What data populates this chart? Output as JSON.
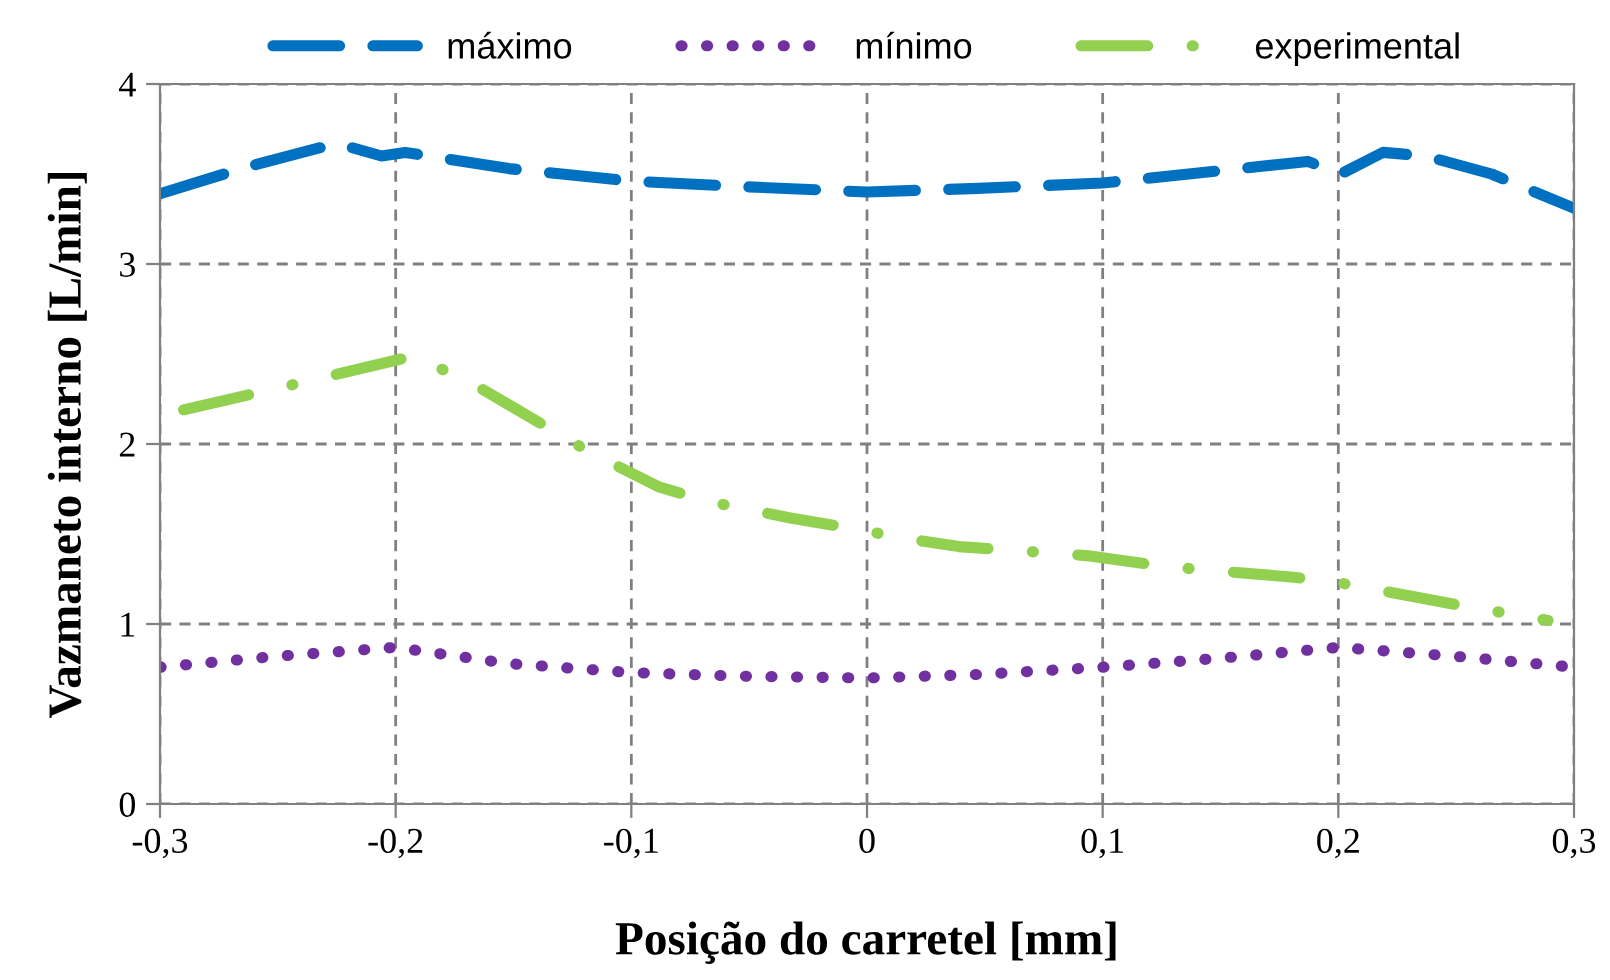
{
  "chart_data": {
    "type": "line",
    "xlabel": "Posição do carretel [mm]",
    "ylabel": "Vazmaneto interno [L/min]",
    "xlim": [
      -0.3,
      0.3
    ],
    "ylim": [
      0,
      4
    ],
    "xticks": [
      {
        "value": -0.3,
        "label": "-0,3"
      },
      {
        "value": -0.2,
        "label": "-0,2"
      },
      {
        "value": -0.1,
        "label": "-0,1"
      },
      0,
      {
        "value": 0.1,
        "label": "0,1"
      },
      {
        "value": 0.2,
        "label": "0,2"
      },
      {
        "value": 0.3,
        "label": "0,3"
      }
    ],
    "yticks": [
      0,
      1,
      2,
      3,
      4
    ],
    "grid": true,
    "legend": "top",
    "marker": "none",
    "series": [
      {
        "name": "máximo",
        "color": "#0070c0",
        "line_style": "dashed",
        "x": [
          -0.3,
          -0.263,
          -0.225,
          -0.206,
          -0.196,
          -0.152,
          -0.1,
          -0.053,
          0,
          0.047,
          0.1,
          0.187,
          0.201,
          0.219,
          0.237,
          0.265,
          0.3
        ],
        "values": [
          3.39,
          3.54,
          3.67,
          3.6,
          3.62,
          3.53,
          3.46,
          3.43,
          3.4,
          3.42,
          3.45,
          3.57,
          3.5,
          3.62,
          3.6,
          3.5,
          3.31
        ]
      },
      {
        "name": "mínimo",
        "color": "#7030a0",
        "line_style": "dotted",
        "x": [
          -0.3,
          -0.251,
          -0.2,
          -0.152,
          -0.1,
          -0.053,
          0,
          0.048,
          0.1,
          0.15,
          0.2,
          0.25,
          0.3
        ],
        "values": [
          0.76,
          0.82,
          0.87,
          0.78,
          0.73,
          0.71,
          0.7,
          0.72,
          0.76,
          0.81,
          0.87,
          0.82,
          0.76
        ]
      },
      {
        "name": "experimental",
        "color": "#92d050",
        "line_style": "dashdot",
        "x": [
          -0.29,
          -0.237,
          -0.192,
          -0.164,
          -0.134,
          -0.117,
          -0.088,
          -0.067,
          -0.033,
          -0.015,
          0.019,
          0.039,
          0.093,
          0.126,
          0.181,
          0.2,
          0.253,
          0.289
        ],
        "values": [
          2.19,
          2.35,
          2.49,
          2.31,
          2.08,
          1.95,
          1.76,
          1.68,
          1.59,
          1.55,
          1.47,
          1.43,
          1.38,
          1.32,
          1.26,
          1.23,
          1.1,
          1.02
        ]
      }
    ]
  }
}
